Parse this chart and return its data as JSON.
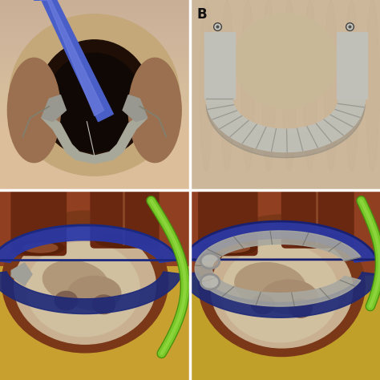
{
  "figure_width": 4.74,
  "figure_height": 4.74,
  "dpi": 100,
  "background_color": "#c8b89a",
  "divider_color": "#ffffff",
  "divider_linewidth": 2.5,
  "label_fontsize": 12,
  "label_fontweight": "bold",
  "label_color": "#111111",
  "panel_A": {
    "bg_color": [
      196,
      172,
      140
    ],
    "valve_dark": "#2a1208",
    "tissue_color": "#c4a07a",
    "catheter_blue": "#4a5ec8",
    "catheter_highlight": "#7080e0",
    "device_gray": "#a0a098",
    "wire_color": "#808070"
  },
  "panel_B": {
    "bg_tan": [
      210,
      190,
      165
    ],
    "bg_tissue": "#c0a888",
    "ring_gray": "#b8b8b0",
    "ring_dark": "#787870",
    "ring_shadow": "#909088"
  },
  "panel_C": {
    "bg_dark": "#8a4520",
    "vessel_dark": "#5a2010",
    "vessel_inner": "#7a3a18",
    "peri_blue": "#2838a8",
    "peri_dark": "#1a2880",
    "heart_outer": "#8a4525",
    "heart_tan": "#c8a880",
    "heart_pale": "#d8c0a0",
    "leaflet_tan": "#b89878",
    "green_cath": "#78c828",
    "green_dark": "#4a8818",
    "green_ring": "#68b820",
    "yellow_fat": "#c8a030"
  },
  "panel_D": {
    "bg_dark": "#8a4520",
    "vessel_dark": "#5a2010",
    "peri_blue": "#2838a8",
    "peri_dark": "#1a2880",
    "heart_outer": "#8a4525",
    "heart_tan": "#c8a880",
    "heart_pale": "#d8c0a0",
    "ring_silver": "#a8a8a0",
    "ring_dark": "#686860",
    "green_cath": "#78c828",
    "yellow_fat": "#c0a028",
    "clip_color": "#909090"
  }
}
